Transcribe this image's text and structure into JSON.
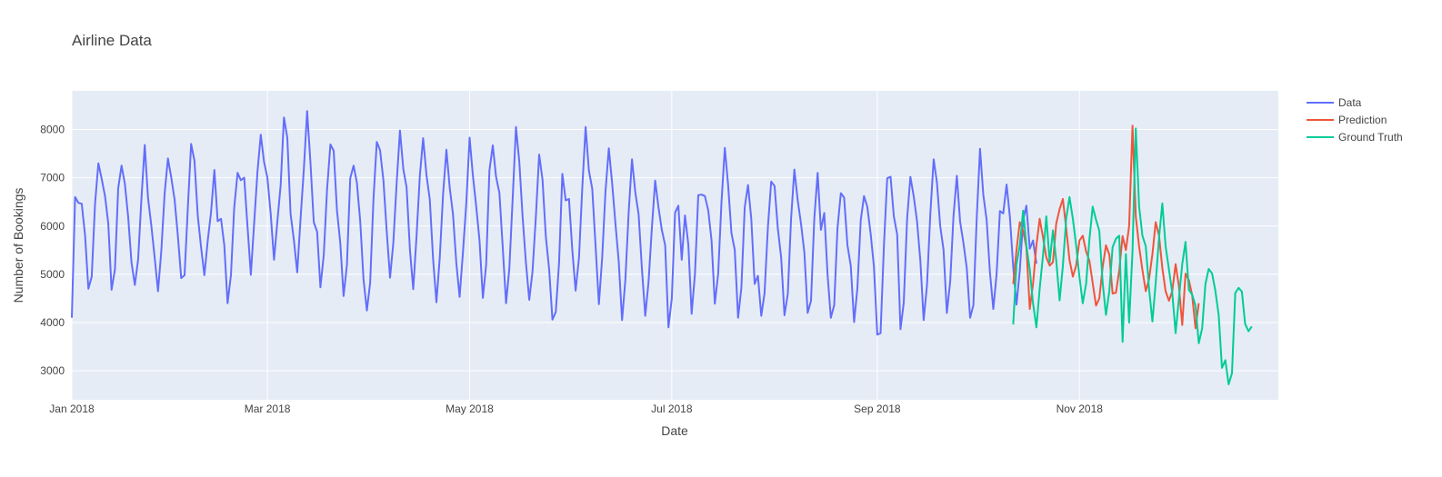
{
  "chart_data": {
    "type": "line",
    "title": "Airline Data",
    "xlabel": "Date",
    "ylabel": "Number of Bookings",
    "x_start": "2018-01-01",
    "x_end": "2018-12-31",
    "ylim": [
      2400,
      8800
    ],
    "x_ticks": [
      {
        "date": "2018-01-01",
        "label": "Jan 2018"
      },
      {
        "date": "2018-03-01",
        "label": "Mar 2018"
      },
      {
        "date": "2018-05-01",
        "label": "May 2018"
      },
      {
        "date": "2018-07-01",
        "label": "Jul 2018"
      },
      {
        "date": "2018-09-01",
        "label": "Sep 2018"
      },
      {
        "date": "2018-11-01",
        "label": "Nov 2018"
      }
    ],
    "y_ticks": [
      3000,
      4000,
      5000,
      6000,
      7000,
      8000
    ],
    "grid": true,
    "legend_position": "top-right",
    "background": "#E5ECF6",
    "series": [
      {
        "name": "Data",
        "color": "#636EFA",
        "start": "2018-01-01",
        "values": [
          4100,
          6600,
          6480,
          6460,
          5800,
          4700,
          4950,
          6450,
          7300,
          6980,
          6620,
          6050,
          4680,
          5100,
          6780,
          7250,
          6880,
          6180,
          5250,
          4780,
          5300,
          6580,
          7680,
          6580,
          6000,
          5350,
          4650,
          5480,
          6680,
          7400,
          7000,
          6550,
          5780,
          4920,
          4980,
          6380,
          7700,
          7350,
          6220,
          5550,
          4980,
          5700,
          6280,
          7160,
          6100,
          6150,
          5600,
          4400,
          4980,
          6380,
          7100,
          6950,
          7000,
          6000,
          4990,
          6050,
          7130,
          7890,
          7330,
          7000,
          6260,
          5300,
          6080,
          6850,
          8250,
          7830,
          6250,
          5700,
          5040,
          6130,
          7180,
          8380,
          7300,
          6080,
          5880,
          4730,
          5400,
          6750,
          7690,
          7560,
          6330,
          5640,
          4550,
          5200,
          6990,
          7250,
          6900,
          6100,
          4900,
          4250,
          4820,
          6570,
          7740,
          7570,
          6950,
          5900,
          4930,
          5650,
          6900,
          7980,
          7180,
          6800,
          5500,
          4690,
          5780,
          7050,
          7820,
          7050,
          6550,
          5300,
          4420,
          5350,
          6650,
          7580,
          6800,
          6250,
          5230,
          4530,
          5460,
          6450,
          7830,
          7050,
          6400,
          5700,
          4510,
          5200,
          7150,
          7670,
          7020,
          6680,
          5570,
          4400,
          5120,
          6580,
          8050,
          7320,
          6190,
          5250,
          4470,
          5060,
          6200,
          7480,
          6960,
          5790,
          5100,
          4060,
          4220,
          5240,
          7080,
          6530,
          6560,
          5490,
          4660,
          5340,
          6780,
          8050,
          7150,
          6770,
          5600,
          4380,
          5340,
          6700,
          7610,
          6900,
          6050,
          5270,
          4050,
          4880,
          6300,
          7380,
          6690,
          6240,
          5120,
          4140,
          4840,
          5970,
          6940,
          6380,
          5920,
          5600,
          3900,
          4500,
          6280,
          6420,
          5300,
          6220,
          5610,
          4180,
          5020,
          6640,
          6650,
          6620,
          6320,
          5700,
          4390,
          5010,
          6480,
          7620,
          6860,
          5850,
          5510,
          4100,
          4720,
          6390,
          6850,
          6150,
          4800,
          4970,
          4140,
          4610,
          5980,
          6920,
          6830,
          5950,
          5340,
          4150,
          4600,
          6160,
          7170,
          6530,
          6050,
          5450,
          4200,
          4450,
          6150,
          7100,
          5920,
          6270,
          5000,
          4100,
          4360,
          5950,
          6680,
          6590,
          5600,
          5180,
          4010,
          4710,
          6120,
          6620,
          6400,
          5840,
          5160,
          3750,
          3780,
          5590,
          6990,
          7020,
          6200,
          5820,
          3860,
          4410,
          6150,
          7020,
          6610,
          6100,
          5270,
          4050,
          4780,
          6240,
          7380,
          6900,
          6000,
          5500,
          4200,
          4850,
          6200,
          7040,
          6090,
          5640,
          5130,
          4100,
          4360,
          6180,
          7600,
          6650,
          6120,
          5040,
          4280,
          5000,
          6310,
          6260,
          6860,
          6200,
          5150,
          4370,
          5070,
          6120,
          6420,
          5530,
          5700,
          5220
        ]
      },
      {
        "name": "Prediction",
        "color": "#EF553B",
        "start": "2018-10-12",
        "values": [
          4800,
          5500,
          6080,
          5900,
          5560,
          4280,
          4800,
          5600,
          6150,
          5760,
          5350,
          5180,
          5250,
          6050,
          6350,
          6560,
          5950,
          5300,
          4950,
          5180,
          5700,
          5800,
          5470,
          5280,
          4820,
          4350,
          4500,
          5150,
          5600,
          5410,
          4600,
          4620,
          5080,
          5790,
          5500,
          6000,
          8080,
          6200,
          5570,
          5090,
          4650,
          4900,
          5420,
          6080,
          5800,
          5130,
          4650,
          4450,
          4650,
          5210,
          4760,
          3950,
          5010,
          4880,
          4570,
          3880,
          4400
        ]
      },
      {
        "name": "Ground Truth",
        "color": "#00CC96",
        "start": "2018-10-12",
        "values": [
          3960,
          5200,
          5600,
          6320,
          5600,
          5100,
          4400,
          3900,
          4700,
          5400,
          6200,
          5250,
          5910,
          5290,
          4460,
          5170,
          6160,
          6600,
          6150,
          5600,
          4940,
          4400,
          4810,
          5720,
          6400,
          6130,
          5900,
          4820,
          4160,
          4650,
          5560,
          5740,
          5800,
          3600,
          5420,
          4000,
          5480,
          8020,
          6400,
          5800,
          5580,
          4700,
          4020,
          4820,
          5760,
          6470,
          5580,
          5100,
          4620,
          3780,
          4490,
          5210,
          5670,
          4680,
          4580,
          4350,
          3570,
          3880,
          4800,
          5110,
          5020,
          4660,
          4150,
          3060,
          3220,
          2720,
          2950,
          4610,
          4720,
          4640,
          3970,
          3820,
          3920
        ]
      }
    ]
  }
}
